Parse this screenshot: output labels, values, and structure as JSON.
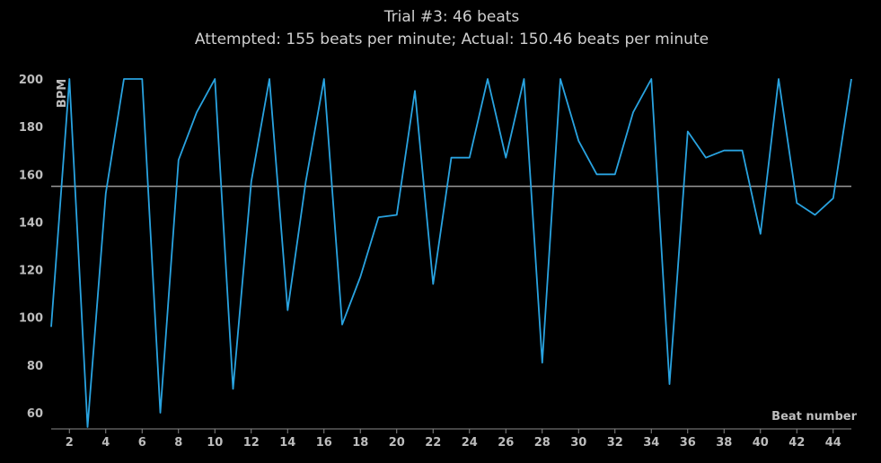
{
  "chart_data": {
    "type": "line",
    "title": "Trial #3: 46 beats",
    "subtitle": "Attempted: 155 beats per minute; Actual: 150.46 beats per minute",
    "xlabel": "Beat number",
    "ylabel": "BPM",
    "xlim": [
      1,
      45
    ],
    "ylim": [
      55,
      200
    ],
    "xticks": [
      2,
      4,
      6,
      8,
      10,
      12,
      14,
      16,
      18,
      20,
      22,
      24,
      26,
      28,
      30,
      32,
      34,
      36,
      38,
      40,
      42,
      44
    ],
    "yticks": [
      60,
      80,
      100,
      120,
      140,
      160,
      180,
      200
    ],
    "reference_line": {
      "y": 155,
      "color": "#9a9a9a"
    },
    "grid": false,
    "series": [
      {
        "color": "#29a3e0",
        "x": [
          1,
          2,
          3,
          4,
          5,
          6,
          7,
          8,
          9,
          10,
          11,
          12,
          13,
          14,
          15,
          16,
          17,
          18,
          19,
          20,
          21,
          22,
          23,
          24,
          25,
          26,
          27,
          28,
          29,
          30,
          31,
          32,
          33,
          34,
          35,
          36,
          37,
          38,
          39,
          40,
          41,
          42,
          43,
          44,
          45
        ],
        "values": [
          96,
          200,
          54,
          152,
          200,
          200,
          60,
          166,
          186,
          200,
          70,
          157,
          200,
          103,
          157,
          200,
          97,
          117,
          142,
          143,
          195,
          114,
          167,
          167,
          200,
          167,
          200,
          81,
          200,
          174,
          160,
          160,
          186,
          200,
          72,
          178,
          167,
          170,
          170,
          135,
          200,
          148,
          143,
          150,
          200
        ]
      }
    ]
  }
}
